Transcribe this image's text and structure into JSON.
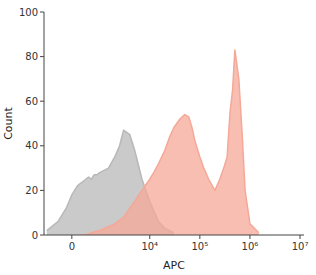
{
  "chart_data": {
    "type": "area",
    "title": "",
    "xlabel": "APC",
    "ylabel": "Count",
    "log": "x",
    "xlim": [
      -1000,
      12000000
    ],
    "xticks": [
      0,
      {
        "value": 10000,
        "label": "10⁴"
      },
      {
        "value": 100000,
        "label": "10⁵"
      },
      {
        "value": 1000000,
        "label": "10⁶"
      },
      {
        "value": 10000000,
        "label": "10⁷"
      }
    ],
    "ylim": [
      0,
      100
    ],
    "yticks": [
      0,
      20,
      40,
      60,
      80,
      100
    ],
    "grid": false,
    "series": [
      {
        "color": "#b8b8b8",
        "x": [
          -900,
          -800,
          -700,
          -600,
          -500,
          -400,
          -300,
          -200,
          -100,
          0,
          100,
          200,
          300,
          400,
          500,
          600,
          700,
          800,
          900,
          1000,
          1500,
          2000,
          2500,
          3000,
          4000,
          5000,
          7000,
          10000,
          15000,
          20000,
          30000
        ],
        "values": [
          2,
          3,
          4,
          5,
          6,
          8,
          10,
          12,
          15,
          18,
          20,
          22,
          23,
          24,
          25,
          26,
          25,
          27,
          27,
          28,
          30,
          35,
          40,
          47,
          45,
          38,
          25,
          15,
          6,
          3,
          1
        ]
      },
      {
        "color": "#f5a898",
        "x": [
          300,
          500,
          700,
          1000,
          2000,
          3000,
          4000,
          5000,
          6000,
          7000,
          8000,
          10000,
          12000,
          15000,
          20000,
          25000,
          30000,
          40000,
          50000,
          60000,
          70000,
          80000,
          100000,
          120000,
          150000,
          200000,
          250000,
          300000,
          350000,
          400000,
          450000,
          500000,
          600000,
          700000,
          800000,
          1000000,
          1500000
        ],
        "values": [
          0,
          0,
          1,
          2,
          5,
          8,
          12,
          15,
          18,
          20,
          22,
          25,
          28,
          32,
          38,
          44,
          48,
          52,
          54,
          53,
          48,
          42,
          35,
          30,
          25,
          20,
          25,
          30,
          35,
          55,
          65,
          83,
          70,
          45,
          20,
          5,
          1
        ]
      }
    ]
  }
}
